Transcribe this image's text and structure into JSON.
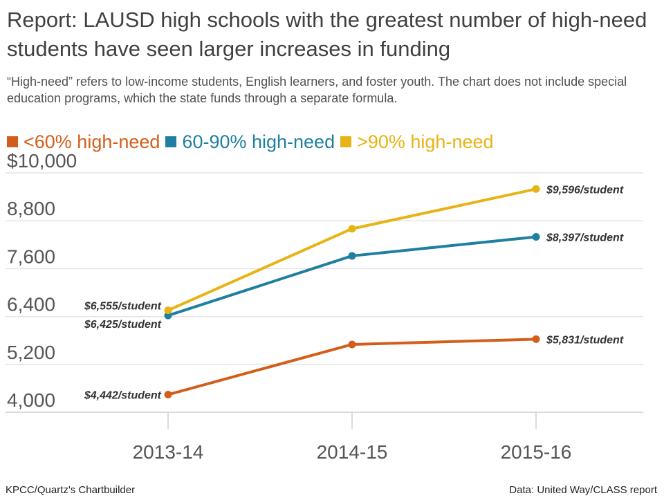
{
  "header": {
    "title": "Report: LAUSD high schools with the greatest number of high-need students have seen larger increases in funding",
    "subtitle": "“High-need” refers to low-income students, English learners, and foster youth. The chart does not include special education programs, which the state funds through a separate formula."
  },
  "footer": {
    "credit": "KPCC/Quartz's Chartbuilder",
    "source": "Data: United Way/CLASS report"
  },
  "chart_data": {
    "type": "line",
    "title": "Report: LAUSD high schools with the greatest number of high-need students have seen larger increases in funding",
    "subtitle": "“High-need” refers to low-income students, English learners, and foster youth. The chart does not include special education programs, which the state funds through a separate formula.",
    "xlabel": "",
    "ylabel": "",
    "categories": [
      "2013-14",
      "2014-15",
      "2015-16"
    ],
    "ylim": [
      4000,
      10000
    ],
    "yticks": [
      {
        "value": 4000,
        "label": "4,000"
      },
      {
        "value": 5200,
        "label": "5,200"
      },
      {
        "value": 6400,
        "label": "6,400"
      },
      {
        "value": 7600,
        "label": "7,600"
      },
      {
        "value": 8800,
        "label": "8,800"
      },
      {
        "value": 10000,
        "label": "$10,000"
      }
    ],
    "grid": true,
    "legend_position": "top-left",
    "series": [
      {
        "name": "<60% high-need",
        "color": "#d35e1a",
        "values": [
          4442,
          5700,
          5831
        ],
        "labels": [
          "$4,442/student",
          "",
          "$5,831/student"
        ]
      },
      {
        "name": "60-90% high-need",
        "color": "#1f7fa0",
        "values": [
          6425,
          7920,
          8397
        ],
        "labels": [
          "$6,425/student",
          "",
          "$8,397/student"
        ]
      },
      {
        "name": ">90% high-need",
        "color": "#e8b314",
        "values": [
          6555,
          8600,
          9596
        ],
        "labels": [
          "$6,555/student",
          "",
          "$9,596/student"
        ]
      }
    ]
  }
}
